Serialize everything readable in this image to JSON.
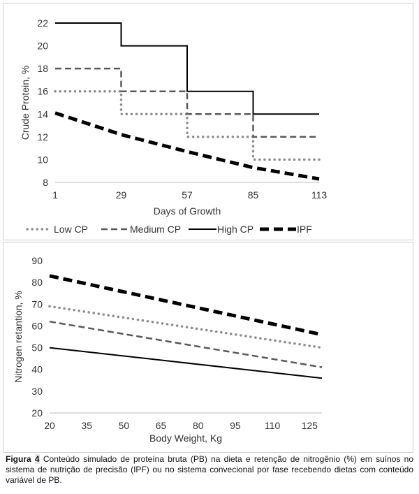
{
  "figure_top": {
    "ylabel": "Crude Protein, %",
    "xlabel": "Days  of Growth",
    "legend_position": "bottom"
  },
  "figure_bottom": {
    "ylabel": "Nitrogen retantion, %",
    "xlabel": "Body Weight, Kg"
  },
  "caption": {
    "lead": "Figura",
    "number": "4",
    "text": "Conteúdo simulado de proteína bruta (PB) na dieta e retenção de nitrogênio (%) em suínos no sistema de nutrição de precisão (IPF) ou no sistema convecional por fase recebendo dietas com conteúdo variável de PB."
  },
  "chart_data": [
    {
      "type": "line",
      "title": "",
      "xlabel": "Days  of Growth",
      "ylabel": "Crude Protein, %",
      "xlim": [
        1,
        113
      ],
      "ylim": [
        8,
        22
      ],
      "x_ticks": [
        1,
        29,
        57,
        85,
        113
      ],
      "y_ticks": [
        8,
        10,
        12,
        14,
        16,
        18,
        20,
        22
      ],
      "grid": false,
      "legend_position": "bottom",
      "series": [
        {
          "name": "Low CP",
          "style": "dotted",
          "color": "#8c8c8c",
          "x": [
            1,
            29,
            29,
            57,
            57,
            85,
            85,
            113
          ],
          "y": [
            16,
            16,
            14,
            14,
            12,
            12,
            10,
            10
          ]
        },
        {
          "name": "Medium CP",
          "style": "dashed",
          "color": "#595959",
          "x": [
            1,
            29,
            29,
            57,
            57,
            85,
            85,
            113
          ],
          "y": [
            18,
            18,
            16,
            16,
            14,
            14,
            12,
            12
          ]
        },
        {
          "name": "High CP",
          "style": "solid",
          "color": "#000000",
          "x": [
            1,
            29,
            29,
            57,
            57,
            85,
            85,
            113
          ],
          "y": [
            22,
            22,
            20,
            20,
            16,
            16,
            14,
            14
          ]
        },
        {
          "name": "IPF",
          "style": "longdash-bold",
          "color": "#000000",
          "x": [
            1,
            29,
            57,
            85,
            113
          ],
          "y": [
            14.1,
            12.2,
            10.7,
            9.3,
            8.3
          ]
        }
      ]
    },
    {
      "type": "line",
      "title": "",
      "xlabel": "Body Weight, Kg",
      "ylabel": "Nitrogen retantion, %",
      "xlim": [
        20,
        130
      ],
      "ylim": [
        20,
        90
      ],
      "x_ticks": [
        20,
        35,
        50,
        65,
        80,
        95,
        110,
        125
      ],
      "y_ticks": [
        20,
        30,
        40,
        50,
        60,
        70,
        80,
        90
      ],
      "grid": false,
      "series": [
        {
          "name": "IPF",
          "style": "longdash-bold",
          "color": "#000000",
          "x": [
            20,
            130
          ],
          "y": [
            83,
            56
          ]
        },
        {
          "name": "Low CP",
          "style": "dotted",
          "color": "#8c8c8c",
          "x": [
            20,
            130
          ],
          "y": [
            69,
            50
          ]
        },
        {
          "name": "Medium CP",
          "style": "dashed",
          "color": "#595959",
          "x": [
            20,
            130
          ],
          "y": [
            62,
            41
          ]
        },
        {
          "name": "High CP",
          "style": "solid",
          "color": "#000000",
          "x": [
            20,
            130
          ],
          "y": [
            50,
            36
          ]
        }
      ]
    }
  ]
}
